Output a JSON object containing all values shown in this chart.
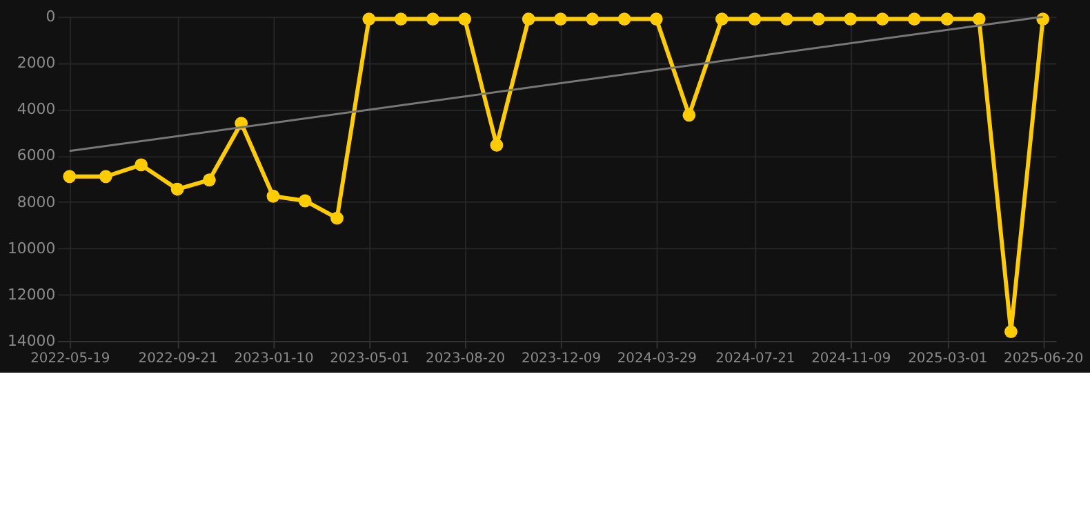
{
  "chart_data": {
    "type": "line",
    "x": [
      "2022-05-19",
      "2022-06-30",
      "2022-08-10",
      "2022-09-21",
      "2022-10-28",
      "2022-12-04",
      "2023-01-10",
      "2023-02-16",
      "2023-03-25",
      "2023-05-01",
      "2023-06-07",
      "2023-07-14",
      "2023-08-20",
      "2023-09-26",
      "2023-11-02",
      "2023-12-09",
      "2024-01-15",
      "2024-02-21",
      "2024-03-29",
      "2024-05-06",
      "2024-06-13",
      "2024-07-21",
      "2024-08-27",
      "2024-10-03",
      "2024-11-09",
      "2024-12-16",
      "2025-01-22",
      "2025-03-01",
      "2025-04-07",
      "2025-05-14",
      "2025-06-20"
    ],
    "series": [
      {
        "color": "#ffcc00",
        "marker": "circle",
        "values": [
          6900,
          6900,
          6400,
          7450,
          7050,
          4600,
          7750,
          7950,
          8700,
          100,
          100,
          100,
          100,
          5550,
          100,
          100,
          100,
          100,
          100,
          4250,
          100,
          100,
          100,
          100,
          100,
          100,
          100,
          100,
          100,
          13600,
          100
        ]
      },
      {
        "type": "line",
        "color": "#777777",
        "marker": "none",
        "x": [
          "2022-05-19",
          "2025-06-20"
        ],
        "values": [
          5800,
          0
        ]
      }
    ],
    "xlim": [
      "2022-05-05",
      "2025-07-05"
    ],
    "xticks": [
      "2022-05-19",
      "2022-09-21",
      "2023-01-10",
      "2023-05-01",
      "2023-08-20",
      "2023-12-09",
      "2024-03-29",
      "2024-07-21",
      "2024-11-09",
      "2025-03-01",
      "2025-06-20"
    ],
    "ylim": [
      14000,
      0
    ],
    "yticks": [
      0,
      2000,
      4000,
      6000,
      8000,
      10000,
      12000,
      14000
    ],
    "grid": true,
    "line_style": "solid"
  }
}
